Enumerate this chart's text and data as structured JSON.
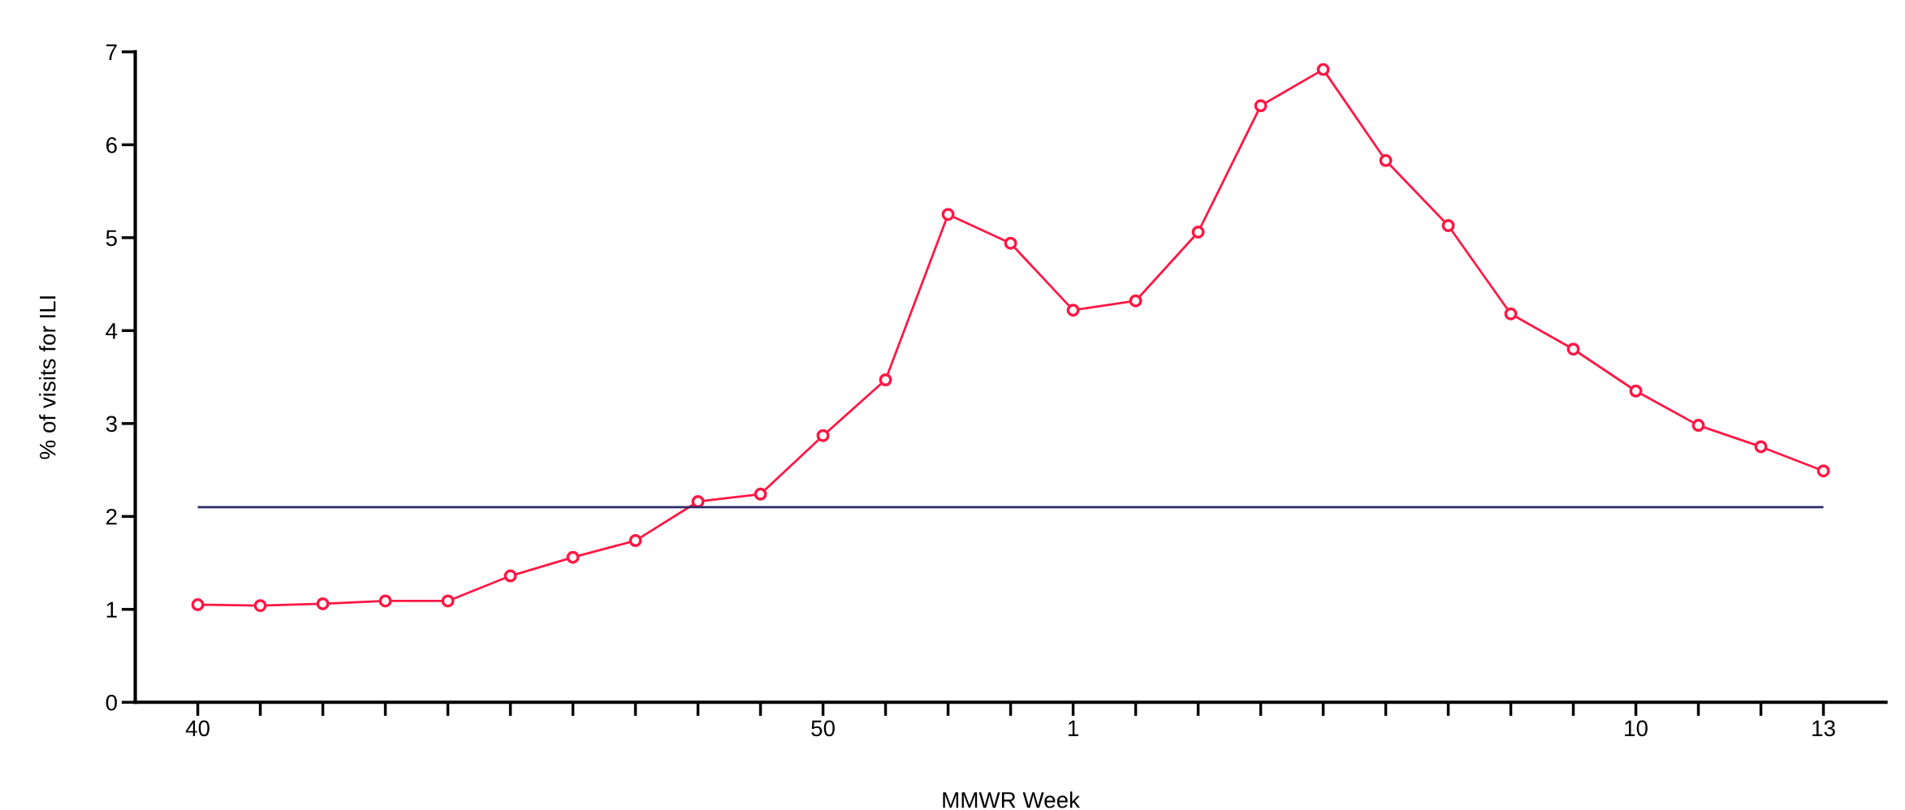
{
  "chart_data": {
    "type": "line",
    "xlabel": "MMWR Week",
    "ylabel": "% of visits for ILI",
    "categories": [
      "40",
      null,
      null,
      null,
      null,
      null,
      null,
      null,
      null,
      null,
      "50",
      null,
      null,
      null,
      "1",
      null,
      null,
      null,
      null,
      null,
      null,
      null,
      null,
      "10",
      null,
      null,
      "13"
    ],
    "series": [
      {
        "color": "#ff1744",
        "values": [
          1.05,
          1.04,
          1.06,
          1.09,
          1.09,
          1.36,
          1.56,
          1.74,
          2.16,
          2.24,
          2.87,
          3.47,
          5.25,
          4.94,
          4.22,
          4.32,
          5.06,
          6.42,
          6.81,
          5.83,
          5.13,
          4.18,
          3.8,
          3.35,
          2.98,
          2.75,
          2.49
        ]
      }
    ],
    "ylim": [
      0,
      7
    ],
    "yticks": [
      0,
      1,
      2,
      3,
      4,
      5,
      6,
      7
    ],
    "ref_lines": [
      {
        "axis": "y",
        "value": 2.1,
        "color": "#2b2b6b"
      }
    ],
    "marker": "circle",
    "line_style": "solid",
    "grid": false,
    "legend": false
  }
}
